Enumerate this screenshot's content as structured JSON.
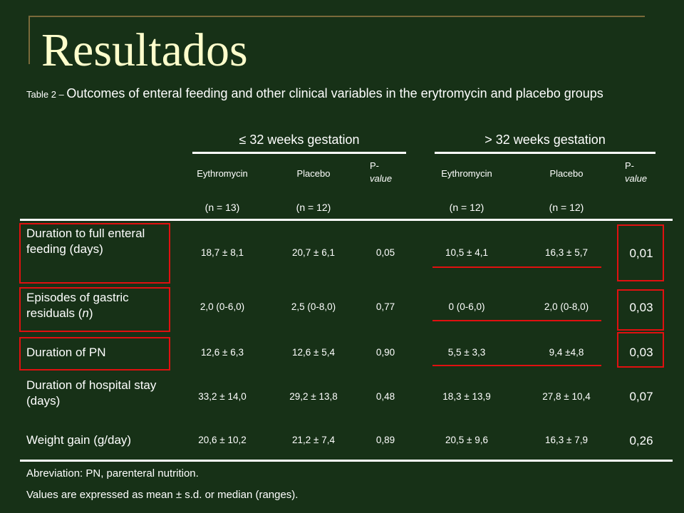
{
  "slide_title": "Resultados",
  "caption": {
    "prefix": "Table 2 – ",
    "text": "Outcomes of enteral feeding and other clinical variables in the erytromycin and placebo groups"
  },
  "groups": [
    "≤ 32 weeks gestation",
    "> 32 weeks gestation"
  ],
  "columns": {
    "left": [
      {
        "name": "Eythromycin",
        "n": "(n = 13)"
      },
      {
        "name": "Placebo",
        "n": "(n = 12)"
      },
      {
        "name": "P-",
        "name2": "value"
      }
    ],
    "right": [
      {
        "name": "Eythromycin",
        "n": "(n = 12)"
      },
      {
        "name": "Placebo",
        "n": "(n = 12)"
      },
      {
        "name": "P-",
        "name2": "value"
      }
    ]
  },
  "rows": [
    {
      "label": "Duration to full enteral feeding (days)",
      "values": [
        "18,7 ± 8,1",
        "20,7 ± 6,1",
        "0,05",
        "10,5 ± 4,1",
        "16,3 ± 5,7",
        "0,01"
      ]
    },
    {
      "label_a": "Episodes of gastric residuals (",
      "label_n": "n",
      "label_b": ")",
      "values": [
        "2,0 (0-6,0)",
        "2,5 (0-8,0)",
        "0,77",
        "0 (0-6,0)",
        "2,0 (0-8,0)",
        "0,03"
      ]
    },
    {
      "label": "Duration of PN",
      "values": [
        "12,6 ± 6,3",
        "12,6 ± 5,4",
        "0,90",
        "5,5 ± 3,3",
        "9,4 ±4,8",
        "0,03"
      ]
    },
    {
      "label": "Duration of hospital stay (days)",
      "values": [
        "33,2 ± 14,0",
        "29,2 ± 13,8",
        "0,48",
        "18,3 ± 13,9",
        "27,8 ± 10,4",
        "0,07"
      ]
    },
    {
      "label": "Weight gain (g/day)",
      "values": [
        "20,6 ± 10,2",
        "21,2 ± 7,4",
        "0,89",
        "20,5 ± 9,6",
        "16,3 ± 7,9",
        "0,26"
      ]
    }
  ],
  "footnotes": [
    "Abreviation: PN, parenteral nutrition.",
    "Values are expressed as mean ± s.d. or median (ranges)."
  ],
  "colors": {
    "background": "#173117",
    "title": "#ffffcc",
    "highlight": "#e01010",
    "text": "#ffffff"
  }
}
